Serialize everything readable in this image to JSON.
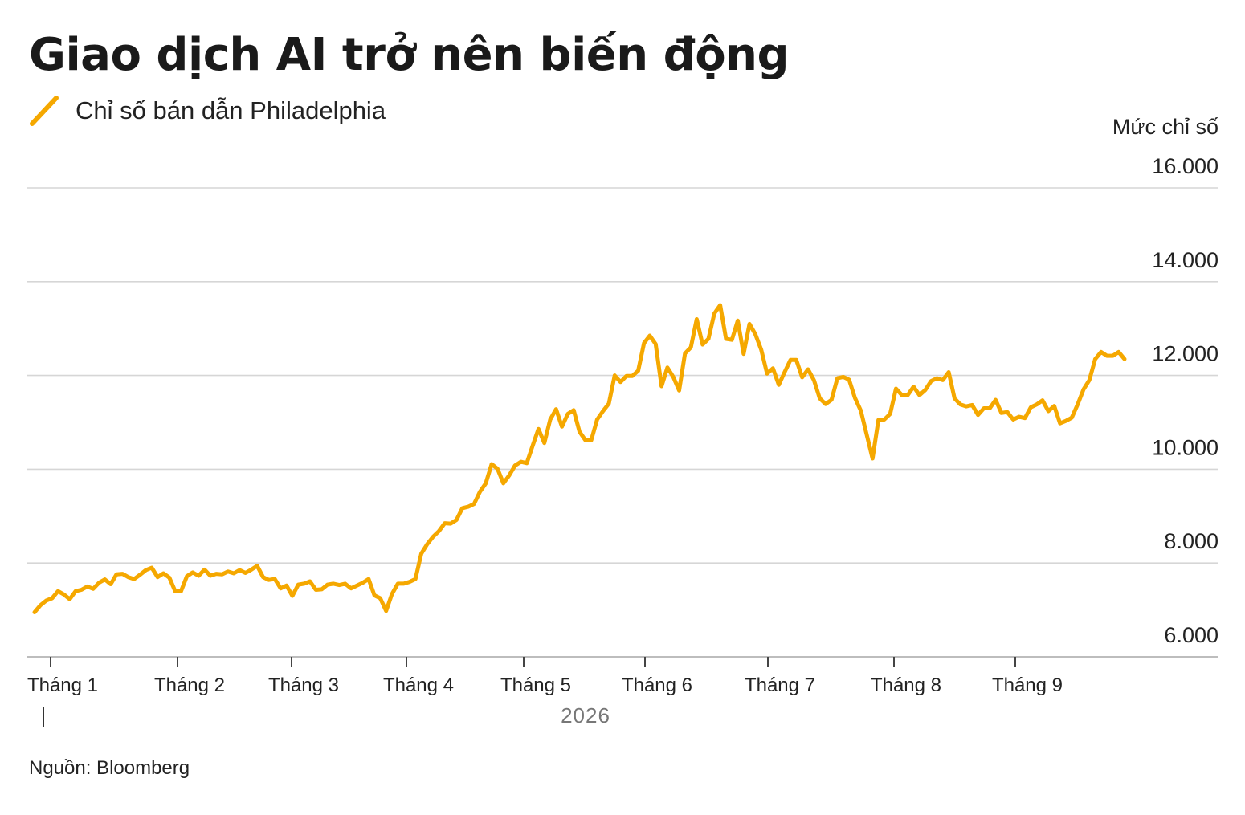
{
  "chart_data": {
    "type": "line",
    "title": "Giao dịch AI trở nên biến động",
    "ylabel": "Mức chỉ số",
    "ylim": [
      6000,
      16000
    ],
    "y_ticks": [
      "6.000",
      "8.000",
      "10.000",
      "12.000",
      "14.000",
      "16.000"
    ],
    "y_tick_values": [
      6000,
      8000,
      10000,
      12000,
      14000,
      16000
    ],
    "x_ticks": [
      "Tháng 1",
      "Tháng 2",
      "Tháng 3",
      "Tháng 4",
      "Tháng 5",
      "Tháng 6",
      "Tháng 7",
      "Tháng 8",
      "Tháng 9"
    ],
    "x_year": "2026",
    "grid": true,
    "legend_position": "top-left",
    "source": "Nguồn: Bloomberg",
    "color": "#f5a800",
    "series": [
      {
        "name": "Chỉ số bán dẫn Philadelphia",
        "values": [
          6950,
          7100,
          7200,
          7250,
          7400,
          7330,
          7230,
          7400,
          7430,
          7500,
          7450,
          7580,
          7650,
          7550,
          7760,
          7770,
          7700,
          7660,
          7750,
          7850,
          7900,
          7700,
          7780,
          7690,
          7400,
          7400,
          7720,
          7800,
          7730,
          7860,
          7730,
          7770,
          7760,
          7820,
          7780,
          7850,
          7790,
          7860,
          7940,
          7700,
          7640,
          7660,
          7460,
          7520,
          7300,
          7540,
          7560,
          7610,
          7430,
          7440,
          7540,
          7560,
          7530,
          7560,
          7460,
          7520,
          7580,
          7660,
          7310,
          7250,
          6980,
          7340,
          7560,
          7560,
          7600,
          7660,
          8200,
          8400,
          8560,
          8680,
          8850,
          8840,
          8920,
          9170,
          9200,
          9260,
          9520,
          9700,
          10110,
          10010,
          9700,
          9870,
          10080,
          10160,
          10130,
          10500,
          10860,
          10560,
          11060,
          11280,
          10910,
          11180,
          11260,
          10800,
          10620,
          10620,
          11060,
          11240,
          11400,
          12000,
          11860,
          11990,
          11990,
          12100,
          12690,
          12850,
          12670,
          11770,
          12170,
          11970,
          11680,
          12470,
          12600,
          13200,
          12660,
          12780,
          13320,
          13500,
          12780,
          12760,
          13170,
          12460,
          13100,
          12880,
          12550,
          12040,
          12150,
          11800,
          12070,
          12330,
          12330,
          11960,
          12130,
          11900,
          11510,
          11390,
          11480,
          11940,
          11970,
          11910,
          11520,
          11250,
          10740,
          10230,
          11050,
          11060,
          11180,
          11720,
          11580,
          11580,
          11760,
          11580,
          11690,
          11880,
          11940,
          11900,
          12070,
          11510,
          11380,
          11340,
          11370,
          11160,
          11300,
          11300,
          11480,
          11200,
          11220,
          11060,
          11120,
          11090,
          11320,
          11380,
          11470,
          11240,
          11350,
          10980,
          11030,
          11100,
          11380,
          11700,
          11900,
          12350,
          12500,
          12420,
          12420,
          12500,
          12350
        ]
      }
    ]
  }
}
